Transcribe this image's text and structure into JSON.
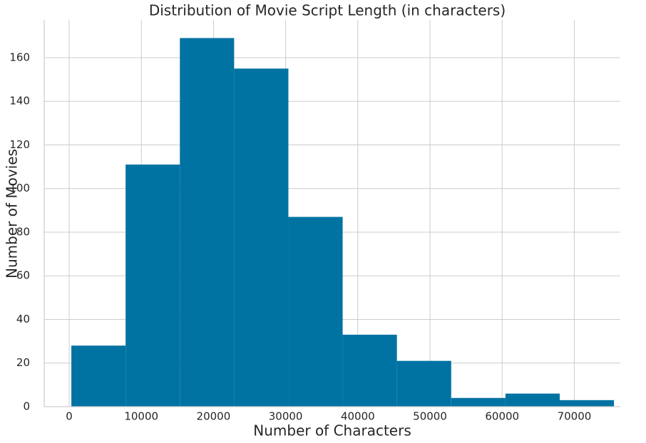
{
  "chart_data": {
    "type": "histogram",
    "title": "Distribution of Movie Script Length (in characters)",
    "x_label": "Number of Characters",
    "y_label": "Number of Movies",
    "bins": [
      300,
      7820,
      15340,
      22860,
      30380,
      37900,
      45420,
      52940,
      60460,
      67980,
      75500
    ],
    "values": [
      28,
      111,
      169,
      155,
      87,
      33,
      21,
      4,
      6,
      3
    ],
    "color": "#0173a2",
    "xlim": [
      -3460,
      76380
    ],
    "ylim": [
      0,
      177.3
    ],
    "xticks": [
      0,
      10000,
      20000,
      30000,
      40000,
      50000,
      60000,
      70000
    ],
    "yticks": [
      0,
      20,
      40,
      60,
      80,
      100,
      120,
      140,
      160
    ],
    "grid": true
  }
}
